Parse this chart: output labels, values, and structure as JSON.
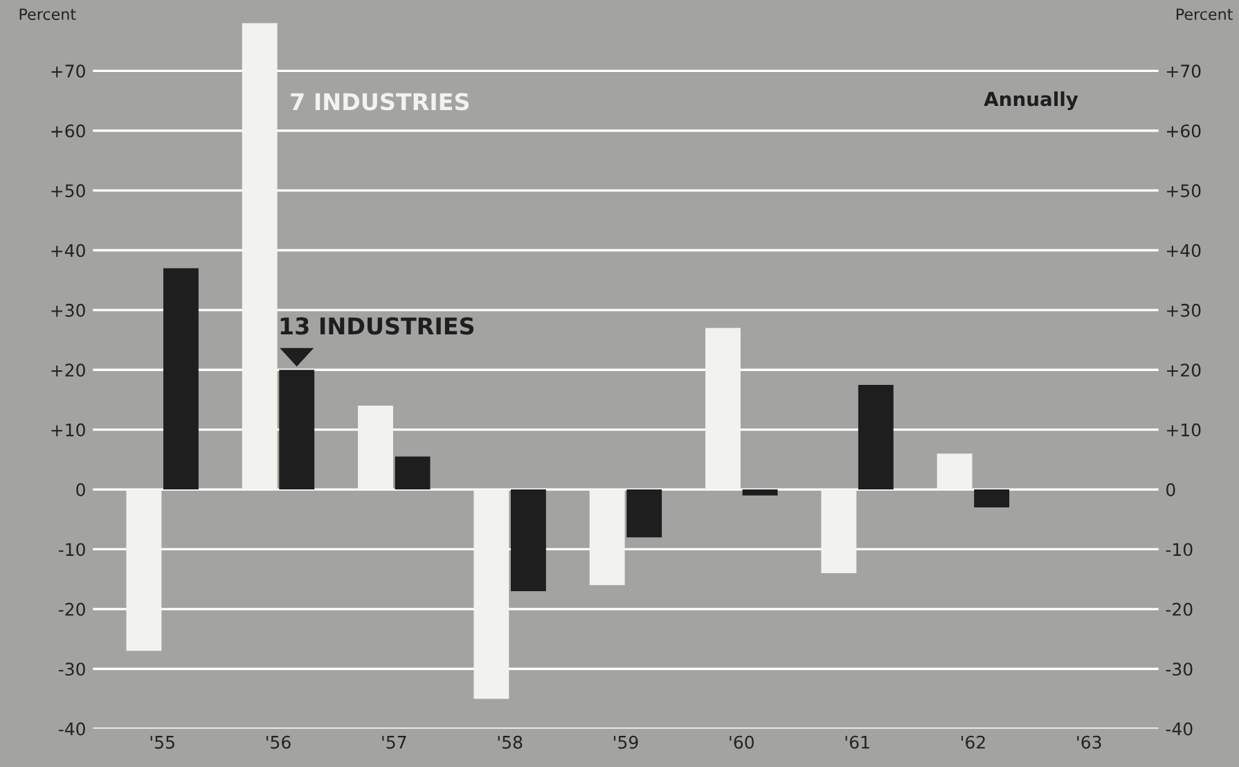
{
  "chart_data": {
    "type": "bar",
    "ylabel": "Percent",
    "y2label": "Percent",
    "categories": [
      "'55",
      "'56",
      "'57",
      "'58",
      "'59",
      "'60",
      "'61",
      "'62",
      "'63"
    ],
    "series": [
      {
        "name": "7 INDUSTRIES",
        "color": "#f2f2ee",
        "values": [
          -27,
          78,
          14,
          -35,
          -16,
          27,
          -14,
          6,
          null
        ]
      },
      {
        "name": "13 INDUSTRIES",
        "color": "#1e1e1e",
        "values": [
          37,
          20,
          5.5,
          -17,
          -8,
          -1,
          17.5,
          -3,
          null
        ]
      }
    ],
    "ylim": [
      -40,
      78
    ],
    "yticks": [
      {
        "value": -40,
        "label": "-40"
      },
      {
        "value": -30,
        "label": "-30"
      },
      {
        "value": -20,
        "label": "-20"
      },
      {
        "value": -10,
        "label": "-10"
      },
      {
        "value": 0,
        "label": "0"
      },
      {
        "value": 10,
        "label": "+10"
      },
      {
        "value": 20,
        "label": "+20"
      },
      {
        "value": 30,
        "label": "+30"
      },
      {
        "value": 40,
        "label": "+40"
      },
      {
        "value": 50,
        "label": "+50"
      },
      {
        "value": 60,
        "label": "+60"
      },
      {
        "value": 70,
        "label": "+70"
      }
    ],
    "y2lim": [
      -40,
      78
    ],
    "y2ticks": [
      {
        "value": -40,
        "label": "-40"
      },
      {
        "value": -30,
        "label": "-30"
      },
      {
        "value": -20,
        "label": "-20"
      },
      {
        "value": -10,
        "label": "-10"
      },
      {
        "value": 0,
        "label": "0"
      },
      {
        "value": 10,
        "label": "+10"
      },
      {
        "value": 20,
        "label": "+20"
      },
      {
        "value": 30,
        "label": "+30"
      },
      {
        "value": 40,
        "label": "+40"
      },
      {
        "value": 50,
        "label": "+50"
      },
      {
        "value": 60,
        "label": "+60"
      },
      {
        "value": 70,
        "label": "+70"
      }
    ],
    "grid": "y",
    "legend": false,
    "annotations": [
      "Annually"
    ]
  }
}
